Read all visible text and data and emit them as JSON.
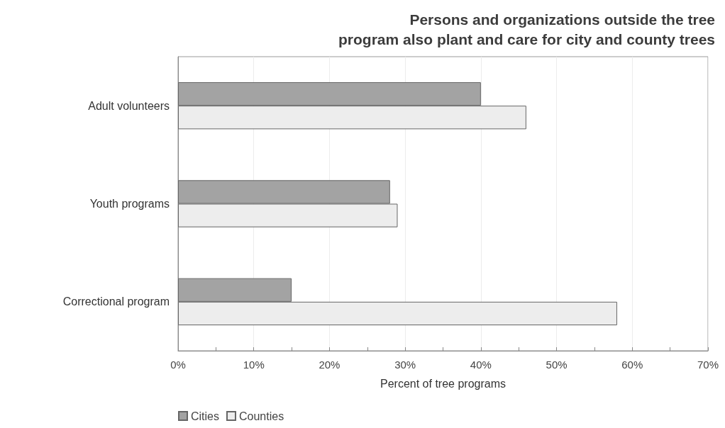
{
  "chart_data": {
    "type": "bar",
    "orientation": "horizontal",
    "title": "Persons and organizations outside the tree\nprogram also plant and care for city and county trees",
    "xlabel": "Percent of tree programs",
    "categories": [
      "Adult volunteers",
      "Youth programs",
      "Correctional program"
    ],
    "series": [
      {
        "name": "Cities",
        "color": "#a3a3a3",
        "values": [
          40,
          28,
          15
        ]
      },
      {
        "name": "Counties",
        "color": "#ededed",
        "values": [
          46,
          29,
          58
        ]
      }
    ],
    "xlim": [
      0,
      70
    ],
    "xticks": [
      {
        "value": 0,
        "label": "0%"
      },
      {
        "value": 5,
        "label": null
      },
      {
        "value": 10,
        "label": "10%"
      },
      {
        "value": 15,
        "label": null
      },
      {
        "value": 20,
        "label": "20%"
      },
      {
        "value": 25,
        "label": null
      },
      {
        "value": 30,
        "label": "30%"
      },
      {
        "value": 35,
        "label": null
      },
      {
        "value": 40,
        "label": "40%"
      },
      {
        "value": 45,
        "label": null
      },
      {
        "value": 50,
        "label": "50%"
      },
      {
        "value": 55,
        "label": null
      },
      {
        "value": 60,
        "label": "60%"
      },
      {
        "value": 65,
        "label": null
      },
      {
        "value": 70,
        "label": "70%"
      }
    ],
    "grid": "x",
    "legend": "bottom left"
  }
}
